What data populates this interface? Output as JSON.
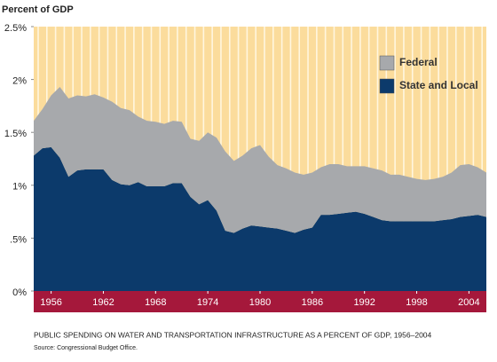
{
  "chart_data": {
    "type": "stacked-area",
    "y_label": "Percent of GDP",
    "caption": "PUBLIC SPENDING ON WATER AND TRANSPORTATION INFRASTRUCTURE AS A PERCENT OF GDP, 1956–2004",
    "source": "Source: Congressional Budget Office.",
    "x": [
      1954,
      1955,
      1956,
      1957,
      1958,
      1959,
      1960,
      1961,
      1962,
      1963,
      1964,
      1965,
      1966,
      1967,
      1968,
      1969,
      1970,
      1971,
      1972,
      1973,
      1974,
      1975,
      1976,
      1977,
      1978,
      1979,
      1980,
      1981,
      1982,
      1983,
      1984,
      1985,
      1986,
      1987,
      1988,
      1989,
      1990,
      1991,
      1992,
      1993,
      1994,
      1995,
      1996,
      1997,
      1998,
      1999,
      2000,
      2001,
      2002,
      2003,
      2004,
      2005,
      2006
    ],
    "series": [
      {
        "name": "State and Local",
        "color": "#0c3a6b",
        "values": [
          1.28,
          1.35,
          1.36,
          1.26,
          1.08,
          1.14,
          1.15,
          1.15,
          1.15,
          1.05,
          1.01,
          1.0,
          1.03,
          0.99,
          0.99,
          0.99,
          1.02,
          1.02,
          0.89,
          0.82,
          0.86,
          0.76,
          0.57,
          0.55,
          0.59,
          0.62,
          0.61,
          0.6,
          0.59,
          0.57,
          0.55,
          0.58,
          0.6,
          0.72,
          0.72,
          0.73,
          0.74,
          0.75,
          0.73,
          0.7,
          0.67,
          0.66,
          0.66,
          0.66,
          0.66,
          0.66,
          0.66,
          0.67,
          0.68,
          0.7,
          0.71,
          0.72,
          0.7
        ]
      },
      {
        "name": "Federal",
        "color": "#a7a9ac",
        "values": [
          0.33,
          0.37,
          0.49,
          0.67,
          0.74,
          0.71,
          0.69,
          0.71,
          0.68,
          0.74,
          0.72,
          0.71,
          0.62,
          0.62,
          0.61,
          0.59,
          0.59,
          0.58,
          0.55,
          0.6,
          0.64,
          0.69,
          0.75,
          0.68,
          0.69,
          0.73,
          0.77,
          0.67,
          0.6,
          0.59,
          0.57,
          0.52,
          0.52,
          0.45,
          0.48,
          0.47,
          0.44,
          0.43,
          0.45,
          0.46,
          0.47,
          0.44,
          0.44,
          0.42,
          0.4,
          0.39,
          0.4,
          0.41,
          0.44,
          0.49,
          0.49,
          0.45,
          0.42
        ]
      }
    ],
    "xlim": [
      1954,
      2006
    ],
    "xticks": [
      1956,
      1962,
      1968,
      1974,
      1980,
      1986,
      1992,
      1998,
      2004
    ],
    "ylim": [
      0,
      2.5
    ],
    "yticks": [
      {
        "value": 0,
        "label": "0%"
      },
      {
        "value": 0.5,
        "label": ".5%"
      },
      {
        "value": 1,
        "label": "1%"
      },
      {
        "value": 1.5,
        "label": "1.5%"
      },
      {
        "value": 2,
        "label": "2%"
      },
      {
        "value": 2.5,
        "label": "2.5%"
      }
    ],
    "legend": "top-right"
  }
}
